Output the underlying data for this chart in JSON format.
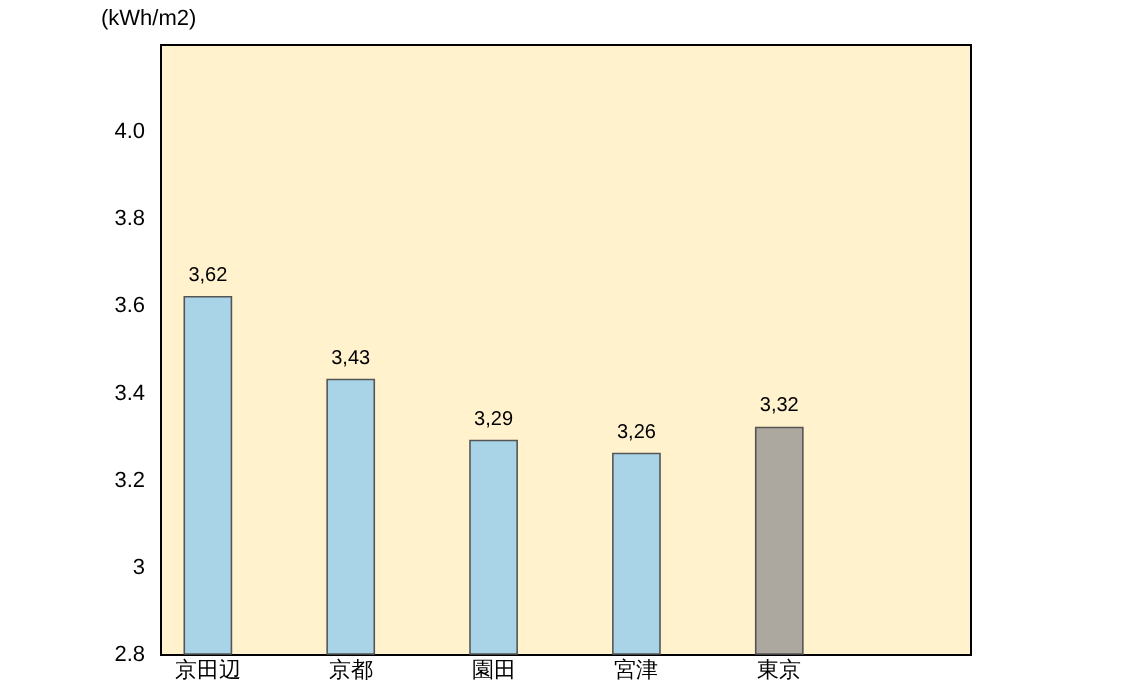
{
  "chart_data": {
    "type": "bar",
    "ylabel": "(kWh/m2)",
    "categories": [
      "京田辺",
      "京都",
      "園田",
      "宮津",
      "東京",
      null
    ],
    "values": [
      3.62,
      3.43,
      3.29,
      3.26,
      3.32,
      null
    ],
    "colors": [
      "#a9d4e8",
      "#a9d4e8",
      "#a9d4e8",
      "#a9d4e8",
      "#aca79f",
      "#a9d4e8"
    ],
    "value_labels": [
      "3,62",
      "3,43",
      "3,29",
      "3,26",
      "3,32",
      null
    ],
    "ylim": [
      2.8,
      4.2
    ],
    "yticks": [
      2.8,
      3,
      3.2,
      3.4,
      3.6,
      3.8,
      {
        "value": 4,
        "label": "4.0"
      }
    ],
    "grid": false
  }
}
